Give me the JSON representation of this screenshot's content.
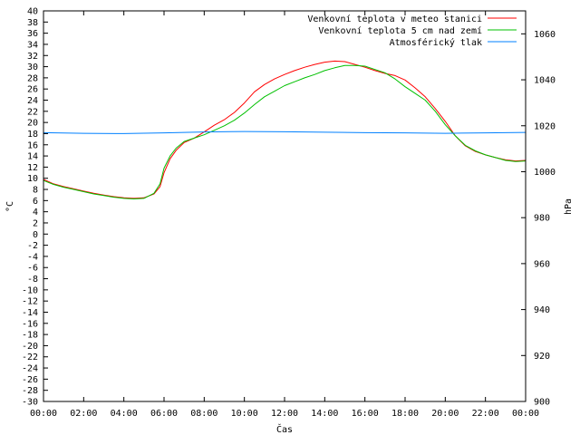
{
  "chart_data": {
    "type": "line",
    "xlabel": "Čas",
    "ylabel": "°C",
    "y2label": "hPa",
    "x_ticks": [
      "00:00",
      "02:00",
      "04:00",
      "06:00",
      "08:00",
      "10:00",
      "12:00",
      "14:00",
      "16:00",
      "18:00",
      "20:00",
      "22:00",
      "00:00"
    ],
    "xlim": [
      0,
      24
    ],
    "ylim": [
      -30,
      40
    ],
    "y_tick_step": 2,
    "y2lim": [
      900,
      1070
    ],
    "y2_ticks": [
      900,
      920,
      940,
      960,
      980,
      1000,
      1020,
      1040,
      1060
    ],
    "grid": false,
    "legend_position": "top-right",
    "colors": {
      "temp_station": "#ff0000",
      "temp_ground": "#00c000",
      "pressure": "#0080ff"
    },
    "series": [
      {
        "name": "Venkovní teplota v meteo stanici",
        "axis": "left",
        "color": "#ff0000",
        "x": [
          0,
          0.5,
          1,
          1.5,
          2,
          2.5,
          3,
          3.5,
          4,
          4.5,
          5,
          5.5,
          5.8,
          6,
          6.3,
          6.6,
          7,
          7.5,
          8,
          8.5,
          9,
          9.5,
          10,
          10.5,
          11,
          11.5,
          12,
          12.5,
          13,
          13.5,
          14,
          14.5,
          15,
          15.5,
          16,
          16.5,
          17,
          17.5,
          18,
          18.5,
          19,
          19.5,
          20,
          20.5,
          21,
          21.5,
          22,
          22.5,
          23,
          23.5,
          24
        ],
        "y": [
          9.8,
          9.0,
          8.5,
          8.1,
          7.7,
          7.3,
          7.0,
          6.7,
          6.5,
          6.4,
          6.5,
          7.2,
          8.5,
          11,
          13.5,
          15,
          16.4,
          17.2,
          18.3,
          19.5,
          20.5,
          21.8,
          23.5,
          25.5,
          26.8,
          27.8,
          28.6,
          29.3,
          29.9,
          30.4,
          30.8,
          31.0,
          30.9,
          30.4,
          29.9,
          29.3,
          28.8,
          28.4,
          27.6,
          26.2,
          24.6,
          22.5,
          20.2,
          17.6,
          15.8,
          14.8,
          14.2,
          13.7,
          13.3,
          13.1,
          13.2
        ]
      },
      {
        "name": "Venkovní teplota 5 cm nad zemí",
        "axis": "left",
        "color": "#00c000",
        "x": [
          0,
          0.5,
          1,
          1.5,
          2,
          2.5,
          3,
          3.5,
          4,
          4.5,
          5,
          5.5,
          5.8,
          6,
          6.3,
          6.6,
          7,
          7.5,
          8,
          8.5,
          9,
          9.5,
          10,
          10.5,
          11,
          11.5,
          12,
          12.5,
          13,
          13.5,
          14,
          14.5,
          15,
          15.5,
          16,
          16.5,
          17,
          17.5,
          18,
          18.5,
          19,
          19.5,
          20,
          20.5,
          21,
          21.5,
          22,
          22.5,
          23,
          23.5,
          24
        ],
        "y": [
          9.6,
          8.9,
          8.4,
          8.0,
          7.6,
          7.2,
          6.9,
          6.6,
          6.4,
          6.3,
          6.4,
          7.3,
          9.0,
          11.8,
          14.0,
          15.4,
          16.6,
          17.2,
          17.8,
          18.6,
          19.4,
          20.4,
          21.7,
          23.2,
          24.6,
          25.6,
          26.6,
          27.3,
          28.0,
          28.6,
          29.3,
          29.8,
          30.2,
          30.2,
          30.1,
          29.5,
          28.9,
          27.8,
          26.4,
          25.2,
          24.0,
          22.0,
          19.6,
          17.6,
          15.9,
          14.9,
          14.2,
          13.7,
          13.2,
          13.0,
          13.1
        ]
      },
      {
        "name": "Atmosférický tlak",
        "axis": "right",
        "color": "#0080ff",
        "x": [
          0,
          2,
          4,
          6,
          8,
          10,
          12,
          14,
          16,
          18,
          20,
          22,
          24
        ],
        "y": [
          1017.0,
          1016.7,
          1016.6,
          1016.9,
          1017.3,
          1017.5,
          1017.4,
          1017.2,
          1017.0,
          1016.9,
          1016.7,
          1016.9,
          1017.1
        ]
      }
    ]
  }
}
